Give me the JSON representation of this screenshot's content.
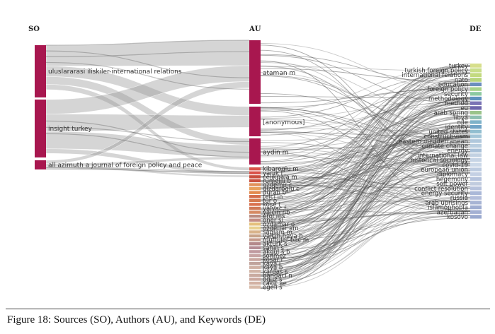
{
  "columns": {
    "so": "SO",
    "au": "AU",
    "de": "DE"
  },
  "sources": [
    {
      "label": "uluslararasi iliskiler-international relations",
      "color": "#a8174f"
    },
    {
      "label": "insight turkey",
      "color": "#a8174f"
    },
    {
      "label": "all azimuth a journal of foreign policy and peace",
      "color": "#a8174f"
    }
  ],
  "authors_major": [
    {
      "label": "ataman m",
      "color": "#a8174f"
    },
    {
      "label": "[anonymous]",
      "color": "#a8174f"
    },
    {
      "label": "aydin m",
      "color": "#a8174f"
    }
  ],
  "authors_minor": [
    {
      "label": "kibaroglu m",
      "color": "#d9534a"
    },
    {
      "label": "yanik l",
      "color": "#d9534a"
    },
    {
      "label": "celikpala m",
      "color": "#c9503f"
    },
    {
      "label": "rumelili b",
      "color": "#c9503f"
    },
    {
      "label": "ozdemir c",
      "color": "#e1915a"
    },
    {
      "label": "dizdaroglu c",
      "color": "#e8a05c"
    },
    {
      "label": "duran b",
      "color": "#e38a4f"
    },
    {
      "label": "telci in",
      "color": "#d36b4a"
    },
    {
      "label": "tur o",
      "color": "#d4794f"
    },
    {
      "label": "kose t",
      "color": "#d9704d"
    },
    {
      "label": "yalvac f",
      "color": "#cf7856"
    },
    {
      "label": "yalcin hb",
      "color": "#d68a64"
    },
    {
      "label": "erol ms",
      "color": "#b98a7e"
    },
    {
      "label": "oner sl",
      "color": "#c48e84"
    },
    {
      "label": "ozdamar o",
      "color": "#e5c07b"
    },
    {
      "label": "ozdemir am",
      "color": "#e9d08e"
    },
    {
      "label": "saglam m",
      "color": "#d9b48c"
    },
    {
      "label": "yalcin haya h",
      "color": "#c7a38a"
    },
    {
      "label": "muftuler-bac m",
      "color": "#c59b8d"
    },
    {
      "label": "akturk s",
      "color": "#b4898b"
    },
    {
      "label": "sahin s",
      "color": "#b48c94"
    },
    {
      "label": "akgul s b",
      "color": "#c09aa0"
    },
    {
      "label": "sonmez",
      "color": "#c7a4a4"
    },
    {
      "label": "kosar r",
      "color": "#c9a6a0"
    },
    {
      "label": "kaya i",
      "color": "#c0a39c"
    },
    {
      "label": "kaya b",
      "color": "#cfb0a3"
    },
    {
      "label": "kardas s",
      "color": "#d1b4a6"
    },
    {
      "label": "bandaci n",
      "color": "#c9aba0"
    },
    {
      "label": "oguz s",
      "color": "#caa89e"
    },
    {
      "label": "cakir ae",
      "color": "#d2b1a3"
    },
    {
      "label": "egeli s",
      "color": "#d8bba9"
    }
  ],
  "keywords": [
    {
      "label": "turkey",
      "color": "#d7df8c"
    },
    {
      "label": "turkish foreign policy",
      "color": "#c9de8a"
    },
    {
      "label": "international relations",
      "color": "#c3da7f"
    },
    {
      "label": "nato",
      "color": "#b7d57c"
    },
    {
      "label": "education",
      "color": "#6c8fbd"
    },
    {
      "label": "foreign policy",
      "color": "#a7d28a"
    },
    {
      "label": "security",
      "color": "#8cc9a1"
    },
    {
      "label": "methodology",
      "color": "#5e91bf"
    },
    {
      "label": "method",
      "color": "#7a73b5"
    },
    {
      "label": "eu",
      "color": "#6d65ab"
    },
    {
      "label": "arab spring",
      "color": "#9bc48a"
    },
    {
      "label": "libya",
      "color": "#8fc0b0"
    },
    {
      "label": "nile",
      "color": "#7eb2c9"
    },
    {
      "label": "identity",
      "color": "#6fa3c6"
    },
    {
      "label": "united states",
      "color": "#92bfd0"
    },
    {
      "label": "constructivism",
      "color": "#a4c6d8"
    },
    {
      "label": "eastern mediterranean",
      "color": "#b0c8dc"
    },
    {
      "label": "climate change",
      "color": "#b8cddf"
    },
    {
      "label": "energy",
      "color": "#a8c0d8"
    },
    {
      "label": "international law",
      "color": "#c2d1e2"
    },
    {
      "label": "historical sociology",
      "color": "#c6d4e5"
    },
    {
      "label": "covid-19",
      "color": "#cbd8e8"
    },
    {
      "label": "european union",
      "color": "#bccbe0"
    },
    {
      "label": "diplomacy",
      "color": "#c4d0e4"
    },
    {
      "label": "hegemony",
      "color": "#b5c3dd"
    },
    {
      "label": "soft power",
      "color": "#c1ccdf"
    },
    {
      "label": "conflict resolution",
      "color": "#b6c2dc"
    },
    {
      "label": "energy security",
      "color": "#aab8d8"
    },
    {
      "label": "russia",
      "color": "#b3bedb"
    },
    {
      "label": "arab uprisings",
      "color": "#a7b4d4"
    },
    {
      "label": "islamophobia",
      "color": "#9fadd1"
    },
    {
      "label": "azerbaijan",
      "color": "#a3b0d3"
    },
    {
      "label": "kosovo",
      "color": "#9aa9cf"
    }
  ],
  "caption": "Figure 18: Sources (SO), Authors (AU), and Keywords (DE)"
}
